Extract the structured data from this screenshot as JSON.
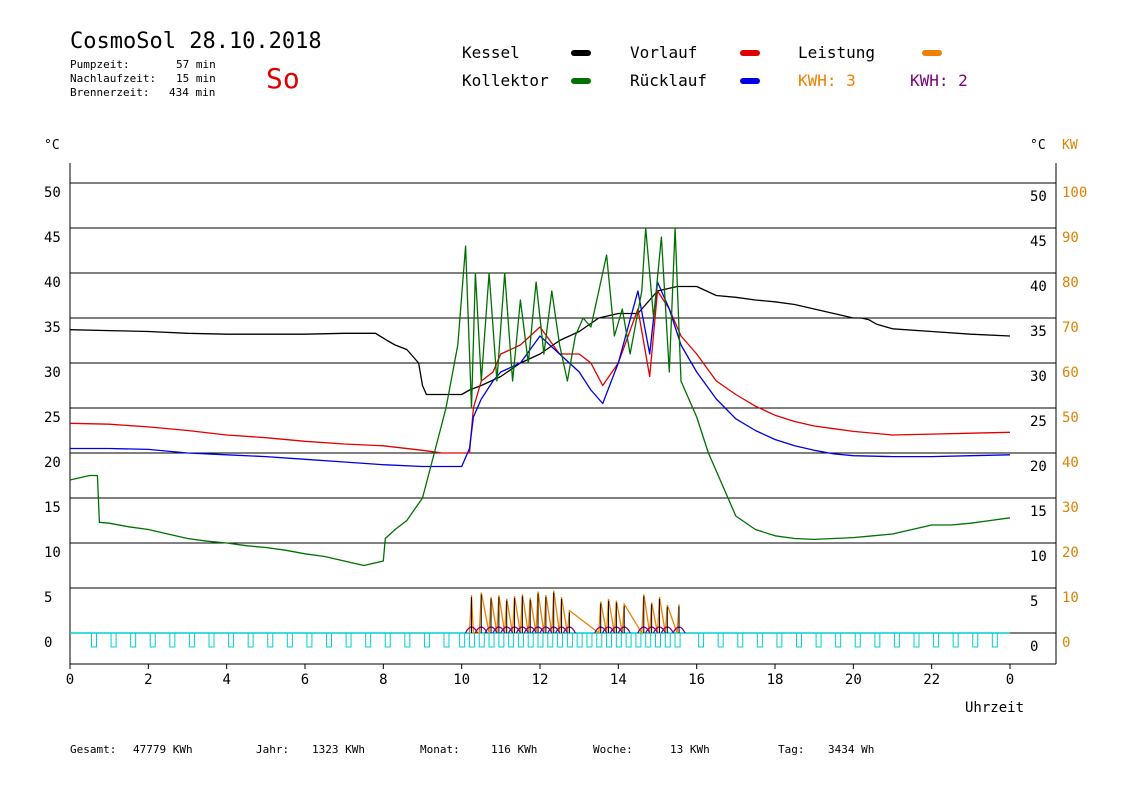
{
  "header": {
    "title": "CosmoSol 28.10.2018",
    "day": "So",
    "stats": [
      {
        "label": "Pumpzeit:",
        "value": "57 min"
      },
      {
        "label": "Nachlaufzeit:",
        "value": "15 min"
      },
      {
        "label": "Brennerzeit:",
        "value": "434 min"
      }
    ]
  },
  "legend": {
    "kessel": {
      "label": "Kessel",
      "color": "#000000"
    },
    "vorlauf": {
      "label": "Vorlauf",
      "color": "#e00000"
    },
    "leistung": {
      "label": "Leistung",
      "color": "#f08000"
    },
    "kollektor": {
      "label": "Kollektor",
      "color": "#007000"
    },
    "ruecklauf": {
      "label": "Rücklauf",
      "color": "#0000e0"
    },
    "kwh_orange": "KWH: 3",
    "kwh_purple": "KWH: 2"
  },
  "axes": {
    "left_unit": "°C",
    "right_unit": "°C",
    "right_unit2": "KW",
    "x_label": "Uhrzeit"
  },
  "footer": [
    {
      "label": "Gesamt:",
      "value": "47779 KWh"
    },
    {
      "label": "Jahr:",
      "value": "1323 KWh"
    },
    {
      "label": "Monat:",
      "value": "116 KWh"
    },
    {
      "label": "Woche:",
      "value": "13 KWh"
    },
    {
      "label": "Tag:",
      "value": "3434 Wh"
    }
  ],
  "chart_data": {
    "type": "line",
    "x_ticks": [
      "0",
      "2",
      "4",
      "6",
      "8",
      "10",
      "12",
      "14",
      "16",
      "18",
      "20",
      "22",
      "0"
    ],
    "y_ticks_left": [
      "50",
      "45",
      "40",
      "35",
      "30",
      "25",
      "20",
      "15",
      "10",
      "5",
      "0"
    ],
    "y_ticks_right_c": [
      "50",
      "45",
      "40",
      "35",
      "30",
      "25",
      "20",
      "15",
      "10",
      "5",
      "0"
    ],
    "y_ticks_right_kw": [
      "100",
      "90",
      "80",
      "70",
      "60",
      "50",
      "40",
      "30",
      "20",
      "10",
      "0"
    ],
    "xlim": [
      0,
      24
    ],
    "ylim": [
      0,
      50
    ],
    "series": [
      {
        "name": "Kessel",
        "color": "#000000",
        "x": [
          0,
          1,
          2,
          3,
          4,
          5,
          6,
          7,
          7.8,
          8.1,
          8.3,
          8.6,
          8.9,
          9.0,
          9.1,
          9.3,
          9.6,
          10.0,
          10.2,
          10.5,
          11,
          11.5,
          12,
          12.5,
          13,
          13.5,
          14,
          14.5,
          15,
          15.5,
          16,
          16.5,
          17,
          17.5,
          18,
          18.5,
          19,
          19.5,
          20,
          20.2,
          20.4,
          20.6,
          21,
          22,
          23,
          24
        ],
        "y": [
          33.7,
          33.6,
          33.5,
          33.3,
          33.2,
          33.2,
          33.2,
          33.3,
          33.3,
          32.5,
          32.0,
          31.5,
          30.0,
          27.5,
          26.5,
          26.5,
          26.5,
          26.5,
          27.0,
          27.5,
          28.5,
          30,
          31,
          32.5,
          33.5,
          35,
          35.5,
          35.5,
          38.0,
          38.5,
          38.5,
          37.5,
          37.3,
          37.0,
          36.8,
          36.5,
          36.0,
          35.5,
          35.0,
          35.0,
          34.8,
          34.3,
          33.8,
          33.5,
          33.2,
          33.0
        ]
      },
      {
        "name": "Vorlauf",
        "color": "#e00000",
        "x": [
          0,
          1,
          2,
          3,
          4,
          5,
          6,
          7,
          8,
          9,
          9.5,
          10.2,
          10.3,
          10.5,
          10.8,
          11,
          11.5,
          12,
          12.5,
          13,
          13.3,
          13.6,
          14,
          14.5,
          14.8,
          15,
          15.3,
          15.6,
          16,
          16.5,
          17,
          17.5,
          18,
          18.5,
          19,
          19.5,
          20,
          21,
          22,
          23,
          24
        ],
        "y": [
          23.3,
          23.2,
          22.9,
          22.5,
          22.0,
          21.7,
          21.3,
          21.0,
          20.8,
          20.3,
          20.0,
          20.0,
          25.0,
          28,
          29,
          31,
          32,
          34,
          31,
          31,
          30,
          27.5,
          30,
          36,
          28.5,
          38,
          36,
          33,
          31,
          28,
          26.5,
          25.2,
          24.2,
          23.5,
          23.0,
          22.7,
          22.4,
          22.0,
          22.1,
          22.2,
          22.3
        ]
      },
      {
        "name": "Rücklauf",
        "color": "#0000e0",
        "x": [
          0,
          1,
          2,
          3,
          4,
          5,
          6,
          7,
          8,
          9,
          10,
          10.2,
          10.3,
          10.5,
          10.8,
          11,
          11.5,
          12,
          12.5,
          13,
          13.3,
          13.6,
          14,
          14.5,
          14.8,
          15,
          15.3,
          15.6,
          16,
          16.5,
          17,
          17.5,
          18,
          18.5,
          19,
          19.5,
          20,
          21,
          22,
          23,
          24
        ],
        "y": [
          20.5,
          20.5,
          20.4,
          20.0,
          19.8,
          19.6,
          19.3,
          19.0,
          18.7,
          18.5,
          18.5,
          20.5,
          24,
          26,
          28,
          29,
          30,
          33,
          31,
          29,
          27,
          25.5,
          30,
          38,
          31,
          39,
          36,
          32,
          29,
          26,
          23.8,
          22.5,
          21.5,
          20.8,
          20.3,
          19.9,
          19.7,
          19.6,
          19.6,
          19.7,
          19.8
        ]
      },
      {
        "name": "Kollektor",
        "color": "#007000",
        "x": [
          0,
          0.5,
          0.7,
          0.75,
          1,
          1.5,
          2,
          2.5,
          3,
          3.5,
          4,
          4.5,
          5,
          5.5,
          6,
          6.5,
          7,
          7.5,
          8,
          8.05,
          8.3,
          8.6,
          9,
          9.3,
          9.6,
          9.9,
          10.1,
          10.25,
          10.35,
          10.5,
          10.7,
          10.9,
          11.1,
          11.3,
          11.5,
          11.7,
          11.9,
          12.1,
          12.3,
          12.5,
          12.7,
          12.9,
          13.1,
          13.3,
          13.5,
          13.7,
          13.9,
          14.1,
          14.3,
          14.6,
          14.7,
          14.9,
          15.1,
          15.3,
          15.45,
          15.6,
          15.8,
          16,
          16.3,
          16.6,
          17,
          17.5,
          18,
          18.5,
          19,
          19.5,
          20,
          20.5,
          21,
          21.5,
          22,
          22.5,
          23,
          23.5,
          24
        ],
        "y": [
          17,
          17.5,
          17.5,
          12.3,
          12.2,
          11.8,
          11.5,
          11.0,
          10.5,
          10.2,
          10.0,
          9.7,
          9.5,
          9.2,
          8.8,
          8.5,
          8.0,
          7.5,
          8.0,
          10.5,
          11.5,
          12.5,
          15,
          20,
          25,
          32,
          43,
          25,
          40,
          28,
          40,
          28,
          40,
          28,
          37,
          30,
          39,
          31,
          38,
          32,
          28,
          33,
          35,
          34,
          38,
          42,
          33,
          36,
          31,
          38,
          45,
          35,
          44,
          29,
          45,
          28,
          26,
          24,
          20,
          17,
          13,
          11.5,
          10.8,
          10.5,
          10.4,
          10.5,
          10.6,
          10.8,
          11.0,
          11.5,
          12.0,
          12.0,
          12.2,
          12.5,
          12.8
        ]
      }
    ],
    "bottom_series": [
      {
        "name": "Leistung",
        "color": "#f08000",
        "x": [
          10.2,
          10.25,
          10.3,
          10.45,
          10.5,
          10.7,
          10.75,
          10.9,
          10.95,
          11.1,
          11.15,
          11.3,
          11.35,
          11.5,
          11.55,
          11.7,
          11.75,
          11.9,
          11.95,
          12.1,
          12.15,
          12.3,
          12.35,
          12.5,
          12.55,
          12.7,
          12.75,
          13.5,
          13.55,
          13.7,
          13.75,
          13.9,
          13.95,
          14.1,
          14.15,
          14.6,
          14.65,
          14.8,
          14.85,
          15.0,
          15.05,
          15.2,
          15.25,
          15.5,
          15.55
        ],
        "y": [
          0,
          4.2,
          0,
          0,
          4.5,
          0,
          4,
          0,
          4.2,
          0,
          3.8,
          0,
          4.1,
          0,
          4.3,
          0,
          3.9,
          0,
          4.6,
          0,
          4.2,
          0,
          4.7,
          0,
          4.0,
          0,
          2.5,
          0,
          3.5,
          0,
          3.8,
          0,
          3.6,
          0,
          3.2,
          0,
          4.3,
          0,
          3.4,
          0,
          4.0,
          0,
          3.1,
          0,
          3.2
        ]
      },
      {
        "name": "Pumpe",
        "color": "#00d0d0",
        "x": [
          0,
          24
        ],
        "y": [
          0,
          0
        ]
      }
    ],
    "grid": true,
    "legend_placement": "top"
  }
}
